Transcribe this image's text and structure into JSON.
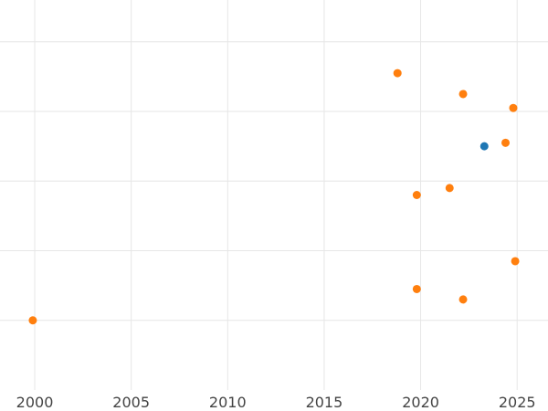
{
  "chart_data": {
    "type": "scatter",
    "title": "",
    "xlabel": "",
    "ylabel": "",
    "xlim": [
      1998.2,
      2026.6
    ],
    "ylim": [
      0,
      5.6
    ],
    "x_ticks": [
      2000,
      2005,
      2010,
      2015,
      2020,
      2025
    ],
    "y_gridlines": [
      1,
      2,
      3,
      4,
      5
    ],
    "y_tick_labels_visible": false,
    "grid": true,
    "legend": "none",
    "series": [
      {
        "color": "#1f77b4",
        "points": [
          {
            "x": 2023.3,
            "y": 3.5
          }
        ]
      },
      {
        "color": "#ff7f0e",
        "points": [
          {
            "x": 2018.8,
            "y": 4.55
          },
          {
            "x": 2022.2,
            "y": 4.25
          },
          {
            "x": 2024.8,
            "y": 4.05
          },
          {
            "x": 2024.4,
            "y": 3.55
          },
          {
            "x": 2021.5,
            "y": 2.9
          },
          {
            "x": 2019.8,
            "y": 2.8
          },
          {
            "x": 2024.9,
            "y": 1.85
          },
          {
            "x": 2019.8,
            "y": 1.45
          },
          {
            "x": 2022.2,
            "y": 1.3
          },
          {
            "x": 1999.9,
            "y": 1.0
          }
        ]
      }
    ]
  }
}
